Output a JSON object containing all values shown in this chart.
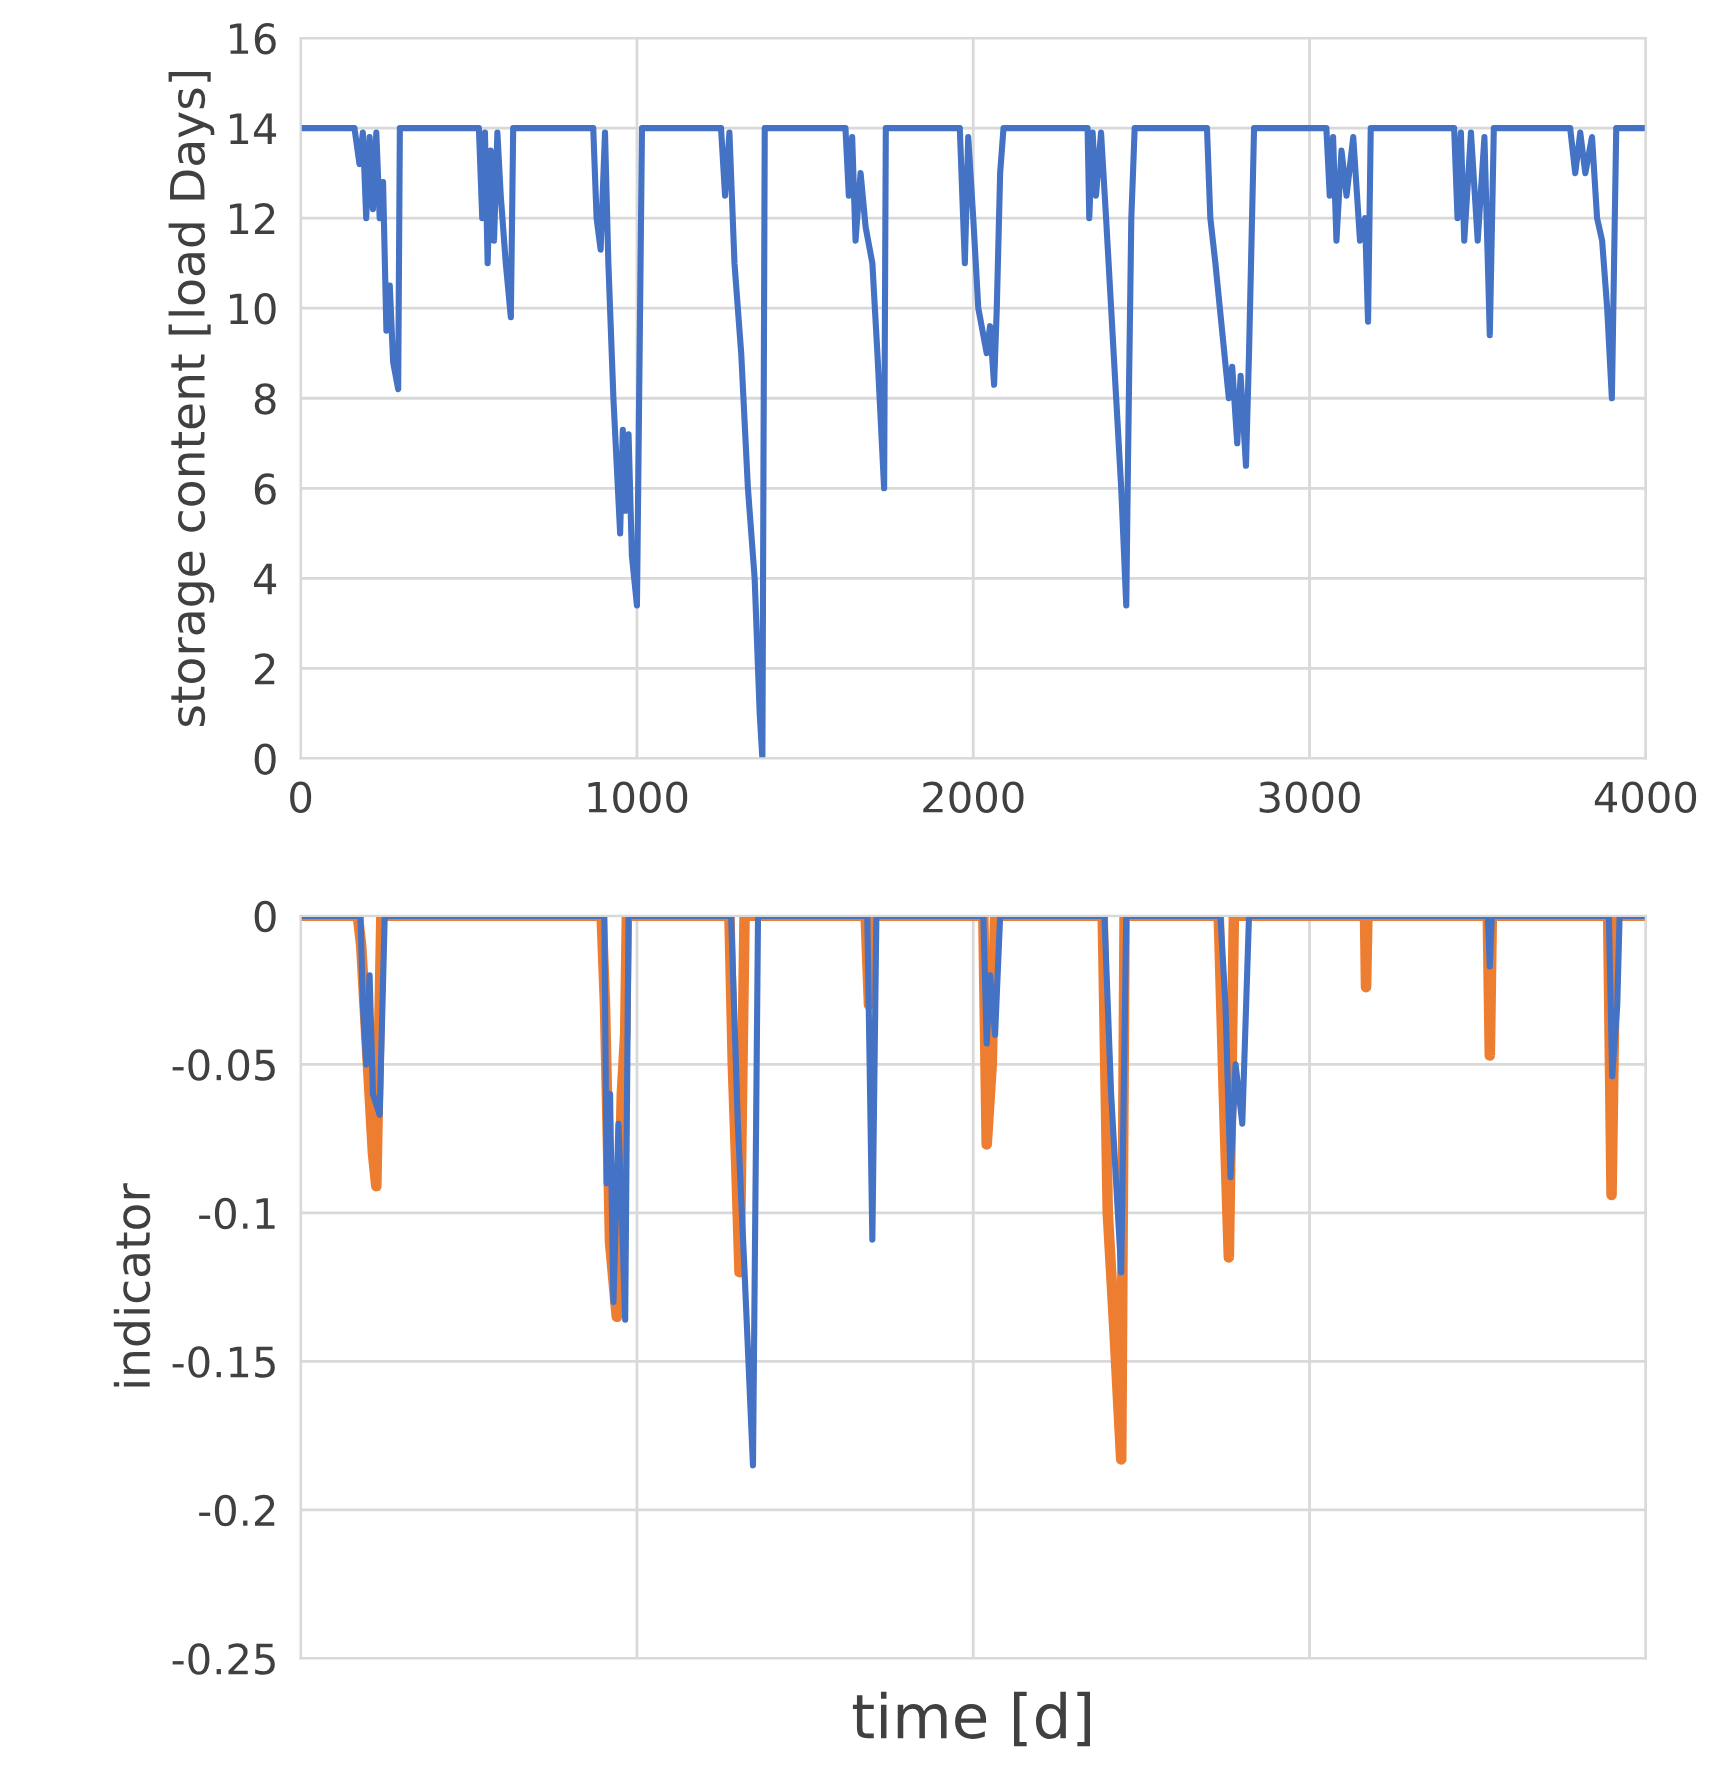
{
  "chart_data": [
    {
      "type": "line",
      "ylabel": "storage content [load Days]",
      "xlim": [
        0,
        4000
      ],
      "ylim": [
        0,
        16
      ],
      "xticks": [
        0,
        1000,
        2000,
        3000,
        4000
      ],
      "yticks": [
        0,
        2,
        4,
        6,
        8,
        10,
        12,
        14,
        16
      ],
      "grid": true,
      "series": [
        {
          "color": "#4472c4",
          "x": [
            0,
            160,
            175,
            185,
            195,
            205,
            215,
            225,
            235,
            245,
            255,
            265,
            275,
            290,
            295,
            530,
            540,
            548,
            556,
            565,
            575,
            585,
            595,
            610,
            625,
            632,
            870,
            880,
            892,
            905,
            915,
            930,
            940,
            950,
            958,
            965,
            975,
            985,
            1000,
            1015,
            1250,
            1262,
            1275,
            1290,
            1310,
            1330,
            1350,
            1365,
            1373,
            1380,
            1620,
            1630,
            1640,
            1650,
            1665,
            1680,
            1700,
            1715,
            1735,
            1740,
            1960,
            1975,
            1985,
            2000,
            2015,
            2040,
            2050,
            2062,
            2070,
            2080,
            2090,
            2340,
            2345,
            2355,
            2365,
            2380,
            2395,
            2410,
            2425,
            2440,
            2455,
            2460,
            2470,
            2480,
            2695,
            2705,
            2720,
            2740,
            2760,
            2770,
            2785,
            2795,
            2811,
            2820,
            2835,
            3050,
            3060,
            3070,
            3080,
            3095,
            3110,
            3130,
            3150,
            3165,
            3174,
            3182,
            3430,
            3440,
            3450,
            3460,
            3480,
            3500,
            3520,
            3536,
            3548,
            3775,
            3790,
            3805,
            3820,
            3840,
            3855,
            3870,
            3885,
            3899,
            3912,
            4000
          ],
          "values": [
            14,
            14,
            13.2,
            13.9,
            12,
            13.8,
            12.2,
            13.9,
            12,
            12.8,
            9.5,
            10.5,
            8.8,
            8.2,
            14,
            14,
            12,
            13.9,
            11,
            13.5,
            11.5,
            13.9,
            12.5,
            11,
            9.8,
            14,
            14,
            12,
            11.3,
            13.9,
            11,
            8,
            6.5,
            5,
            7.3,
            5.5,
            7.2,
            4.5,
            3.4,
            14,
            14,
            12.5,
            13.9,
            11,
            9,
            6,
            4,
            1,
            0,
            14,
            14,
            12.5,
            13.8,
            11.5,
            13,
            11.8,
            11,
            9,
            6,
            14,
            14,
            11,
            13.8,
            12,
            10,
            9,
            9.6,
            8.3,
            10,
            13,
            14,
            14,
            12,
            13.9,
            12.5,
            13.9,
            12,
            10,
            8,
            6,
            3.4,
            6.5,
            12,
            14,
            14,
            12,
            11,
            9.5,
            8,
            8.7,
            7,
            8.5,
            6.5,
            9,
            14,
            14,
            12.5,
            13.8,
            11.5,
            13.5,
            12.5,
            13.8,
            11.5,
            12,
            9.7,
            14,
            14,
            12,
            13.9,
            11.5,
            13.9,
            11.5,
            13.8,
            9.4,
            14,
            14,
            13,
            13.9,
            13,
            13.8,
            12,
            11.5,
            10,
            8,
            14,
            14
          ]
        }
      ]
    },
    {
      "type": "line",
      "xlabel": "time [d]",
      "ylabel": "indicator",
      "xlim": [
        0,
        4000
      ],
      "ylim": [
        -0.25,
        0
      ],
      "xticks": [
        {
          "value": 0,
          "label": null
        },
        {
          "value": 1000,
          "label": null
        },
        {
          "value": 2000,
          "label": null
        },
        {
          "value": 3000,
          "label": null
        },
        {
          "value": 4000,
          "label": null
        }
      ],
      "yticks": [
        -0.25,
        -0.2,
        -0.15,
        -0.1,
        -0.05,
        0
      ],
      "grid": true,
      "tick_labels": "y",
      "series": [
        {
          "color": "#ed7d31",
          "x": [
            0,
            170,
            180,
            195,
            215,
            225,
            240,
            895,
            905,
            920,
            940,
            955,
            965,
            970,
            1275,
            1285,
            1295,
            1305,
            1320,
            1680,
            1690,
            1700,
            2030,
            2040,
            2055,
            2065,
            2385,
            2400,
            2420,
            2440,
            2450,
            2730,
            2745,
            2760,
            2775,
            3165,
            3168,
            3172,
            3530,
            3536,
            3542,
            3888,
            3898,
            3910,
            4000
          ],
          "values": [
            0,
            0,
            -0.01,
            -0.04,
            -0.08,
            -0.091,
            0,
            0,
            -0.03,
            -0.11,
            -0.135,
            -0.06,
            -0.04,
            0,
            0,
            -0.05,
            -0.083,
            -0.12,
            0,
            0,
            -0.03,
            0,
            0,
            -0.077,
            -0.05,
            0,
            0,
            -0.1,
            -0.14,
            -0.183,
            0,
            0,
            -0.06,
            -0.115,
            0,
            0,
            -0.024,
            0,
            0,
            -0.047,
            0,
            0,
            -0.094,
            0,
            0
          ]
        },
        {
          "color": "#4472c4",
          "x": [
            0,
            130,
            178,
            185,
            195,
            205,
            215,
            235,
            250,
            903,
            910,
            920,
            930,
            945,
            955,
            965,
            975,
            1280,
            1300,
            1320,
            1345,
            1360,
            1685,
            1700,
            1712,
            2030,
            2040,
            2050,
            2065,
            2080,
            2390,
            2410,
            2425,
            2440,
            2455,
            2735,
            2750,
            2765,
            2780,
            2800,
            2820,
            3530,
            3536,
            3542,
            3890,
            3900,
            3915,
            3922,
            4000
          ],
          "values": [
            0,
            0,
            0,
            -0.03,
            -0.05,
            -0.02,
            -0.06,
            -0.067,
            0,
            0,
            -0.09,
            -0.06,
            -0.13,
            -0.07,
            -0.1,
            -0.136,
            0,
            0,
            -0.07,
            -0.12,
            -0.185,
            0,
            0,
            -0.109,
            0,
            0,
            -0.043,
            -0.02,
            -0.04,
            0,
            0,
            -0.06,
            -0.09,
            -0.12,
            0,
            0,
            -0.03,
            -0.088,
            -0.05,
            -0.07,
            0,
            0,
            -0.017,
            0,
            0,
            -0.054,
            -0.03,
            0,
            0
          ]
        }
      ]
    }
  ]
}
